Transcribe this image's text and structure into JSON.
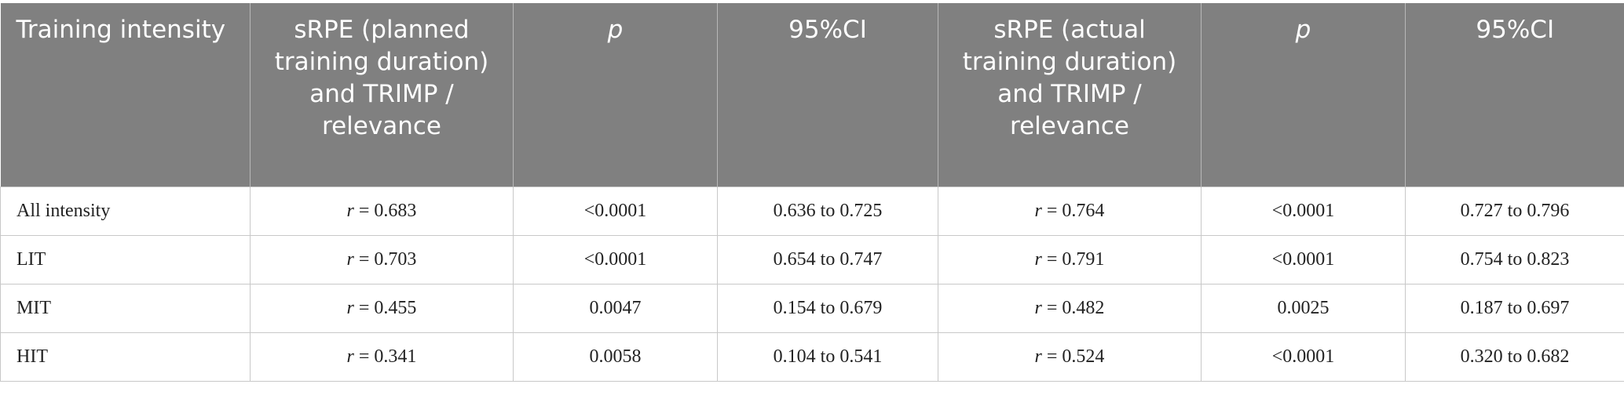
{
  "table": {
    "header": [
      "Training intensity",
      "sRPE (planned training duration) and TRIMP / relevance",
      "p",
      "95%CI",
      "sRPE (actual training duration) and TRIMP / relevance",
      "p",
      "95%CI"
    ],
    "rows": [
      [
        "All intensity",
        "r = 0.683",
        "<0.0001",
        "0.636 to 0.725",
        "r = 0.764",
        "<0.0001",
        "0.727 to 0.796"
      ],
      [
        "LIT",
        "r = 0.703",
        "<0.0001",
        "0.654 to 0.747",
        "r = 0.791",
        "<0.0001",
        "0.754 to 0.823"
      ],
      [
        "MIT",
        "r = 0.455",
        "0.0047",
        "0.154 to 0.679",
        "r = 0.482",
        "0.0025",
        "0.187 to 0.697"
      ],
      [
        "HIT",
        "r = 0.341",
        "0.0058",
        "0.104 to 0.541",
        "r = 0.524",
        "<0.0001",
        "0.320 to 0.682"
      ]
    ]
  }
}
